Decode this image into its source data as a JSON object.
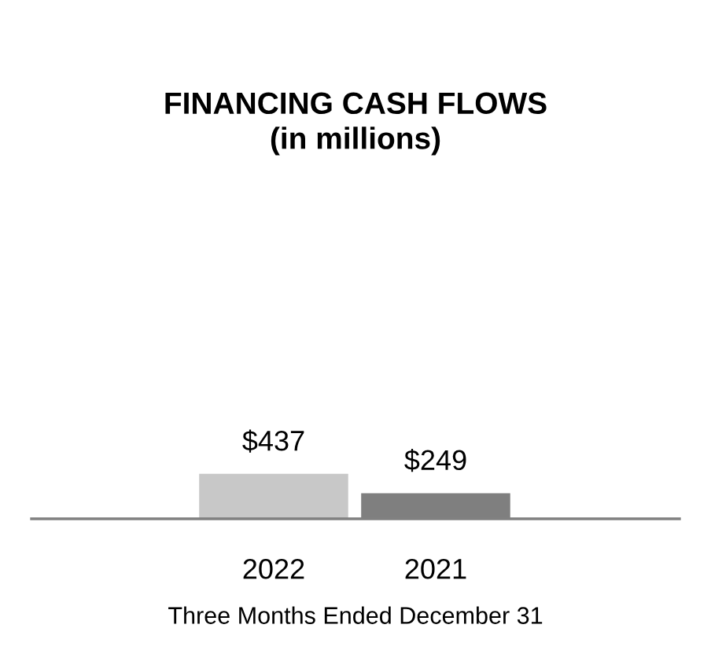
{
  "chart_data": {
    "type": "bar",
    "title": "FINANCING CASH FLOWS\n(in millions)",
    "xlabel": "Three Months Ended December 31",
    "categories": [
      "2022",
      "2021"
    ],
    "values": [
      437,
      249
    ],
    "colors": [
      "#c8c8c8",
      "#7f7f7f"
    ],
    "value_labels": [
      "$437",
      "$249"
    ],
    "tick_labels": "x",
    "grid": false,
    "legend": false
  }
}
